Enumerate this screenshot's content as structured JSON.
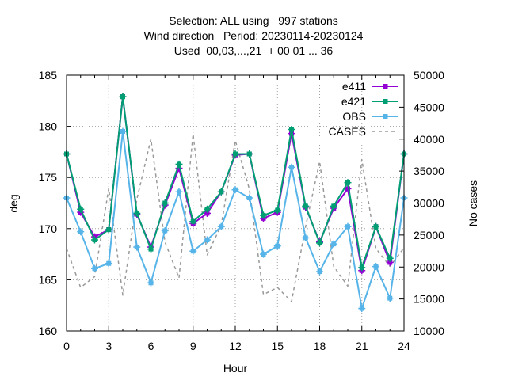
{
  "chart_data": {
    "type": "line",
    "title_lines": [
      "Selection: ALL using   997 stations",
      "Wind direction   Period: 20230114-20230124",
      "Used  00,03,...,21  + 00 01 ... 36"
    ],
    "xlabel": "Hour",
    "ylabel": "deg",
    "y2label": "No cases",
    "xlim": [
      0,
      24
    ],
    "ylim": [
      160,
      185
    ],
    "y2lim": [
      10000,
      50000
    ],
    "xticks": [
      "0",
      "3",
      "6",
      "9",
      "12",
      "15",
      "18",
      "21",
      "24"
    ],
    "yticks": [
      "160",
      "165",
      "170",
      "175",
      "180",
      "185"
    ],
    "y2ticks": [
      "10000",
      "15000",
      "20000",
      "25000",
      "30000",
      "35000",
      "40000",
      "45000",
      "50000"
    ],
    "grid": true,
    "legend_position": "top-right",
    "x": [
      0,
      1,
      2,
      3,
      4,
      5,
      6,
      7,
      8,
      9,
      10,
      11,
      12,
      13,
      14,
      15,
      16,
      17,
      18,
      19,
      20,
      21,
      22,
      23,
      24
    ],
    "series": [
      {
        "name": "e411",
        "color": "#9400d3",
        "axis": "y",
        "values": [
          177.3,
          171.6,
          169.2,
          169.9,
          182.9,
          171.4,
          168.2,
          172.3,
          175.9,
          170.5,
          171.5,
          173.6,
          177.2,
          177.3,
          171.0,
          171.6,
          179.3,
          172.1,
          168.7,
          172.0,
          173.9,
          165.9,
          170.2,
          166.7,
          177.3
        ]
      },
      {
        "name": "e421",
        "color": "#009e73",
        "axis": "y",
        "values": [
          177.3,
          171.9,
          168.9,
          169.9,
          182.9,
          171.5,
          168.0,
          172.5,
          176.3,
          170.7,
          171.9,
          173.6,
          177.3,
          177.3,
          171.3,
          171.8,
          179.7,
          172.2,
          168.6,
          172.2,
          174.5,
          166.2,
          170.2,
          167.1,
          177.3
        ]
      },
      {
        "name": "OBS",
        "color": "#56b4e9",
        "axis": "y",
        "values": [
          173.0,
          169.7,
          166.1,
          166.6,
          179.5,
          168.2,
          164.7,
          169.8,
          173.6,
          167.8,
          168.9,
          170.2,
          173.8,
          173.0,
          167.5,
          168.3,
          176.0,
          169.1,
          165.8,
          168.5,
          170.2,
          162.2,
          166.3,
          163.2,
          173.0
        ]
      },
      {
        "name": "CASES",
        "color": "#999999",
        "axis": "y2",
        "dashed": true,
        "values": [
          22900,
          16800,
          18500,
          32300,
          15600,
          30600,
          40000,
          23900,
          18300,
          40800,
          21900,
          26500,
          39800,
          32200,
          15700,
          16800,
          14600,
          26300,
          36500,
          20100,
          17000,
          36800,
          22900,
          20100,
          23000
        ]
      }
    ]
  }
}
